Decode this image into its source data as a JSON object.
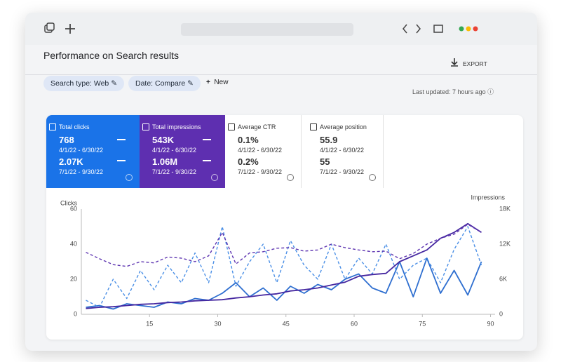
{
  "header": {
    "title": "Performance on Search results",
    "export": "EXPORT"
  },
  "filters": {
    "chips": [
      "Search type: Web",
      "Date: Compare"
    ],
    "new": "New",
    "updated": "Last updated: 7 hours ago"
  },
  "scorecards": [
    {
      "label": "Total clicks",
      "value1": "768",
      "range1": "4/1/22 - 6/30/22",
      "value2": "2.07K",
      "range2": "7/1/22 - 9/30/22"
    },
    {
      "label": "Total impressions",
      "value1": "543K",
      "range1": "4/1/22 - 6/30/22",
      "value2": "1.06M",
      "range2": "7/1/22 - 9/30/22"
    },
    {
      "label": "Average CTR",
      "value1": "0.1%",
      "range1": "4/1/22 - 6/30/22",
      "value2": "0.2%",
      "range2": "7/1/22 - 9/30/22"
    },
    {
      "label": "Average position",
      "value1": "55.9",
      "range1": "4/1/22 - 6/30/22",
      "value2": "55",
      "range2": "7/1/22 - 9/30/22"
    }
  ],
  "chart_data": {
    "type": "line",
    "y_label": "Clicks",
    "y2_label": "Impressions",
    "x": [
      1,
      4,
      7,
      10,
      13,
      16,
      19,
      22,
      25,
      28,
      31,
      34,
      37,
      40,
      43,
      46,
      49,
      52,
      55,
      58,
      61,
      64,
      67,
      70,
      73,
      76,
      79,
      82,
      85,
      88
    ],
    "xlim": [
      0,
      91
    ],
    "xticks": [
      15,
      30,
      45,
      60,
      75,
      90
    ],
    "ylim": [
      0,
      60
    ],
    "yticks": [
      0,
      20,
      40,
      60
    ],
    "y2lim": [
      0,
      18000
    ],
    "y2ticks": [
      0,
      {
        "value": 6000,
        "label": "6K"
      },
      {
        "value": 12000,
        "label": "12K"
      },
      {
        "value": 18000,
        "label": "18K"
      }
    ],
    "grid": false,
    "series": [
      {
        "color": "#2f6fd0",
        "dashed": false,
        "values": [
          4,
          5,
          3,
          6,
          5,
          4,
          7,
          6,
          9,
          8,
          12,
          18,
          10,
          15,
          8,
          16,
          12,
          17,
          14,
          20,
          23,
          15,
          12,
          30,
          10,
          32,
          12,
          25,
          11,
          30
        ]
      },
      {
        "color": "#4a8fe6",
        "dashed": true,
        "values": [
          8,
          4,
          20,
          9,
          25,
          14,
          28,
          18,
          35,
          18,
          50,
          16,
          30,
          40,
          18,
          42,
          28,
          20,
          40,
          20,
          32,
          23,
          40,
          20,
          28,
          32,
          18,
          37,
          50,
          28
        ]
      },
      {
        "color": "#4527a0",
        "dashed": false,
        "values": [
          1000,
          1200,
          1300,
          1500,
          1700,
          1800,
          2000,
          2100,
          2300,
          2400,
          2500,
          2800,
          3000,
          3300,
          3500,
          4000,
          4200,
          4500,
          5000,
          5500,
          6500,
          6800,
          7000,
          9000,
          10000,
          11000,
          13000,
          14000,
          15500,
          14000
        ]
      },
      {
        "color": "#5e35b1",
        "dashed": true,
        "values": [
          10600,
          9500,
          8500,
          8200,
          9000,
          8800,
          9800,
          9600,
          9000,
          10000,
          14000,
          8600,
          10500,
          10700,
          11300,
          11400,
          10800,
          11000,
          12000,
          11400,
          11000,
          10700,
          10800,
          9500,
          10400,
          12000,
          13000,
          13700,
          15400,
          14000
        ]
      }
    ]
  }
}
